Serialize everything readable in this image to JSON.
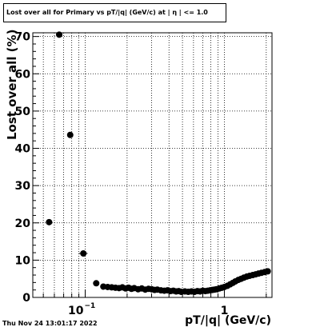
{
  "title": "Lost over all for Primary vs pT/|q| (GeV/c) at |  η  | <= 1.0",
  "timestamp": "Thu Nov 24 13:01:17 2022",
  "chart_data": {
    "type": "scatter",
    "title": "Lost over all for Primary vs pT/|q| (GeV/c) at |  η  | <= 1.0",
    "xlabel": "pT/|q| (GeV/c)",
    "ylabel": "Lost over all (%)",
    "xscale": "log",
    "xlim": [
      0.042,
      2.2
    ],
    "ylim": [
      0,
      71
    ],
    "grid": true,
    "yticks": [
      0,
      10,
      20,
      30,
      40,
      50,
      60,
      70
    ],
    "ytick_labels": [
      "0",
      "10",
      "20",
      "30",
      "40",
      "50",
      "60",
      "70"
    ],
    "xtick_labels": [
      {
        "value": 0.1,
        "base": "10",
        "exp": "−1"
      },
      {
        "value": 1,
        "text": "1"
      }
    ],
    "marker_color": "#000000",
    "points": [
      {
        "x": 0.055,
        "y": 20.2,
        "xerr": 0.0025
      },
      {
        "x": 0.065,
        "y": 70.5,
        "xerr": 0.0025
      },
      {
        "x": 0.078,
        "y": 43.6,
        "xerr": 0.0025
      },
      {
        "x": 0.097,
        "y": 11.8,
        "xerr": 0.007
      },
      {
        "x": 0.12,
        "y": 3.8,
        "xerr": 0.006
      },
      {
        "x": 0.135,
        "y": 2.9
      },
      {
        "x": 0.145,
        "y": 2.8
      },
      {
        "x": 0.155,
        "y": 2.7
      },
      {
        "x": 0.165,
        "y": 2.6
      },
      {
        "x": 0.175,
        "y": 2.5
      },
      {
        "x": 0.185,
        "y": 2.7
      },
      {
        "x": 0.195,
        "y": 2.4
      },
      {
        "x": 0.205,
        "y": 2.6
      },
      {
        "x": 0.215,
        "y": 2.3
      },
      {
        "x": 0.225,
        "y": 2.5
      },
      {
        "x": 0.24,
        "y": 2.2
      },
      {
        "x": 0.255,
        "y": 2.4
      },
      {
        "x": 0.27,
        "y": 2.1
      },
      {
        "x": 0.285,
        "y": 2.3
      },
      {
        "x": 0.3,
        "y": 2.2
      },
      {
        "x": 0.315,
        "y": 2.0
      },
      {
        "x": 0.33,
        "y": 2.1
      },
      {
        "x": 0.35,
        "y": 1.9
      },
      {
        "x": 0.37,
        "y": 1.8
      },
      {
        "x": 0.39,
        "y": 1.9
      },
      {
        "x": 0.41,
        "y": 1.7
      },
      {
        "x": 0.43,
        "y": 1.8
      },
      {
        "x": 0.45,
        "y": 1.6
      },
      {
        "x": 0.47,
        "y": 1.7
      },
      {
        "x": 0.49,
        "y": 1.5
      },
      {
        "x": 0.52,
        "y": 1.6
      },
      {
        "x": 0.55,
        "y": 1.5
      },
      {
        "x": 0.58,
        "y": 1.6
      },
      {
        "x": 0.61,
        "y": 1.5
      },
      {
        "x": 0.64,
        "y": 1.7
      },
      {
        "x": 0.67,
        "y": 1.6
      },
      {
        "x": 0.7,
        "y": 1.8
      },
      {
        "x": 0.73,
        "y": 1.7
      },
      {
        "x": 0.76,
        "y": 1.8
      },
      {
        "x": 0.79,
        "y": 1.9
      },
      {
        "x": 0.82,
        "y": 2.0
      },
      {
        "x": 0.85,
        "y": 2.1
      },
      {
        "x": 0.88,
        "y": 2.2
      },
      {
        "x": 0.92,
        "y": 2.4
      },
      {
        "x": 0.96,
        "y": 2.6
      },
      {
        "x": 1.0,
        "y": 2.8
      },
      {
        "x": 1.05,
        "y": 3.1
      },
      {
        "x": 1.1,
        "y": 3.5
      },
      {
        "x": 1.15,
        "y": 3.9
      },
      {
        "x": 1.2,
        "y": 4.3
      },
      {
        "x": 1.26,
        "y": 4.7
      },
      {
        "x": 1.32,
        "y": 5.0
      },
      {
        "x": 1.38,
        "y": 5.3
      },
      {
        "x": 1.45,
        "y": 5.6
      },
      {
        "x": 1.52,
        "y": 5.8
      },
      {
        "x": 1.6,
        "y": 6.0
      },
      {
        "x": 1.68,
        "y": 6.2
      },
      {
        "x": 1.76,
        "y": 6.4
      },
      {
        "x": 1.85,
        "y": 6.6
      },
      {
        "x": 1.95,
        "y": 6.8
      },
      {
        "x": 2.05,
        "y": 7.0
      }
    ]
  }
}
